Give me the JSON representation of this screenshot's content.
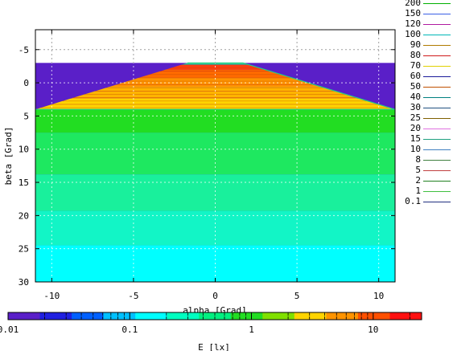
{
  "chart_data": {
    "type": "heatmap",
    "xlabel": "alpha [Grad]",
    "ylabel": "beta [Grad]",
    "xlim": [
      -11,
      11
    ],
    "ylim": [
      -8,
      30
    ],
    "y_axis_reversed": true,
    "grid": true,
    "x_ticks": [
      -10,
      -5,
      0,
      5,
      10
    ],
    "x_tick_labels": [
      "-10",
      "-5",
      "0",
      "5",
      "10"
    ],
    "y_ticks": [
      -5,
      0,
      5,
      10,
      15,
      20,
      25,
      30
    ],
    "y_tick_labels": [
      "-5",
      "0",
      "5",
      "10",
      "15",
      "20",
      "25",
      "30"
    ],
    "illuminated_region": {
      "beta_top": -3,
      "beta_bottom": 30,
      "color_outside": "#5a1fc8"
    },
    "bright_zone": {
      "apex_beta": -3.0,
      "apex_alpha_half_width": 1.7,
      "base_beta": 4.0,
      "base_alpha_half_width": 11
    },
    "beta_bands": [
      {
        "beta_from": 4.0,
        "beta_to": 7.5,
        "color": "#22dd22",
        "value_lx": 2
      },
      {
        "beta_from": 7.5,
        "beta_to": 13.8,
        "color": "#1ee860",
        "value_lx": 1.2
      },
      {
        "beta_from": 13.8,
        "beta_to": 19.3,
        "color": "#19f09c",
        "value_lx": 0.8
      },
      {
        "beta_from": 19.3,
        "beta_to": 24.5,
        "color": "#12f5c6",
        "value_lx": 0.5
      },
      {
        "beta_from": 24.5,
        "beta_to": 30.0,
        "color": "#00ffff",
        "value_lx": 0.35
      }
    ],
    "bright_zone_bands": [
      {
        "beta_from": 2.4,
        "beta_to": 4.0,
        "color": "#ffd400"
      },
      {
        "beta_from": 0.6,
        "beta_to": 2.4,
        "color": "#ffb400"
      },
      {
        "beta_from": -0.8,
        "beta_to": 0.6,
        "color": "#ff9400"
      },
      {
        "beta_from": -2.0,
        "beta_to": -0.8,
        "color": "#ff6a00"
      },
      {
        "beta_from": -2.7,
        "beta_to": -2.0,
        "color": "#ff3b10"
      },
      {
        "beta_from": -3.0,
        "beta_to": -2.7,
        "color": "#33cc99"
      }
    ],
    "contour_legend": [
      {
        "label": "200",
        "color": "#00b000"
      },
      {
        "label": "150",
        "color": "#3a5fe6"
      },
      {
        "label": "120",
        "color": "#b01aa0"
      },
      {
        "label": "100",
        "color": "#00b7b7"
      },
      {
        "label": "90",
        "color": "#b07a00"
      },
      {
        "label": "80",
        "color": "#d01a1a"
      },
      {
        "label": "70",
        "color": "#e0d000"
      },
      {
        "label": "60",
        "color": "#1a1a9a"
      },
      {
        "label": "50",
        "color": "#c05000"
      },
      {
        "label": "40",
        "color": "#008080"
      },
      {
        "label": "30",
        "color": "#205080"
      },
      {
        "label": "25",
        "color": "#806000"
      },
      {
        "label": "20",
        "color": "#e070e0"
      },
      {
        "label": "15",
        "color": "#20a080"
      },
      {
        "label": "10",
        "color": "#4080c0"
      },
      {
        "label": "8",
        "color": "#408040"
      },
      {
        "label": "5",
        "color": "#c04040"
      },
      {
        "label": "2",
        "color": "#208020"
      },
      {
        "label": "1",
        "color": "#40c040"
      },
      {
        "label": "0.1",
        "color": "#203080"
      }
    ],
    "colorbar": {
      "label": "E [lx]",
      "scale": "log",
      "range": [
        0.01,
        25
      ],
      "tick_labels": [
        "0.01",
        "0.1",
        "1",
        "10"
      ],
      "tick_values": [
        0.01,
        0.1,
        1,
        10
      ],
      "colors": [
        "#5a1fc8",
        "#2020e0",
        "#0060ff",
        "#00c0ff",
        "#00ffff",
        "#00ffc0",
        "#00f080",
        "#22dd22",
        "#80e000",
        "#ffd400",
        "#ff9400",
        "#ff5000",
        "#ff1010"
      ]
    }
  }
}
